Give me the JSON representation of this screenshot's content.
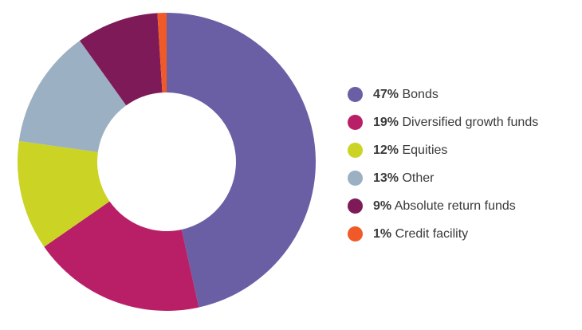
{
  "chart_data": {
    "type": "pie",
    "donut": true,
    "title": "",
    "legend_position": "right",
    "series": [
      {
        "name": "Bonds",
        "pct_label": "47%",
        "value": 47,
        "color": "#6a5fa5"
      },
      {
        "name": "Diversified growth funds",
        "pct_label": "19%",
        "value": 19,
        "color": "#b91f66"
      },
      {
        "name": "Equities",
        "pct_label": "12%",
        "value": 12,
        "color": "#cbd424"
      },
      {
        "name": "Other",
        "pct_label": "13%",
        "value": 13,
        "color": "#9bb0c2"
      },
      {
        "name": "Absolute return funds",
        "pct_label": "9%",
        "value": 9,
        "color": "#7e1a58"
      },
      {
        "name": "Credit facility",
        "pct_label": "1%",
        "value": 1,
        "color": "#f05a28"
      }
    ]
  }
}
